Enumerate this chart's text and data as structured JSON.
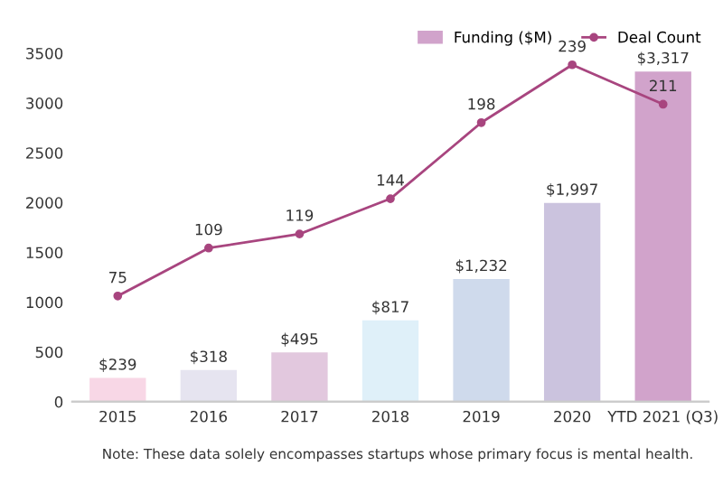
{
  "chart_data": {
    "type": "bar",
    "categories": [
      "2015",
      "2016",
      "2017",
      "2018",
      "2019",
      "2020",
      "YTD 2021 (Q3)"
    ],
    "series": [
      {
        "name": "Funding ($M)",
        "color": "#d1a3cb",
        "colors": [
          "#f8d7e6",
          "#e6e4f0",
          "#e2c8de",
          "#dff0f9",
          "#cfdaec",
          "#cbc3de",
          "#d1a3cb"
        ],
        "values": [
          239,
          318,
          495,
          817,
          1232,
          1997,
          3317
        ],
        "value_labels": [
          "$239",
          "$318",
          "$495",
          "$817",
          "$1,232",
          "$1,997",
          "$3,317"
        ]
      },
      {
        "name": "Deal Count",
        "type": "line",
        "axis": "y2",
        "color": "#a8457f",
        "marker": "circle",
        "values": [
          75,
          109,
          119,
          144,
          198,
          239,
          211
        ],
        "value_labels": [
          "75",
          "109",
          "119",
          "144",
          "198",
          "239",
          "211"
        ]
      }
    ],
    "ylim": [
      0,
      3500
    ],
    "yticks": [
      0,
      500,
      1000,
      1500,
      2000,
      2500,
      3000,
      3500
    ],
    "grid": false,
    "legend": "top right",
    "annotations": [
      "Note: These data solely encompasses startups whose primary focus is mental health."
    ]
  }
}
